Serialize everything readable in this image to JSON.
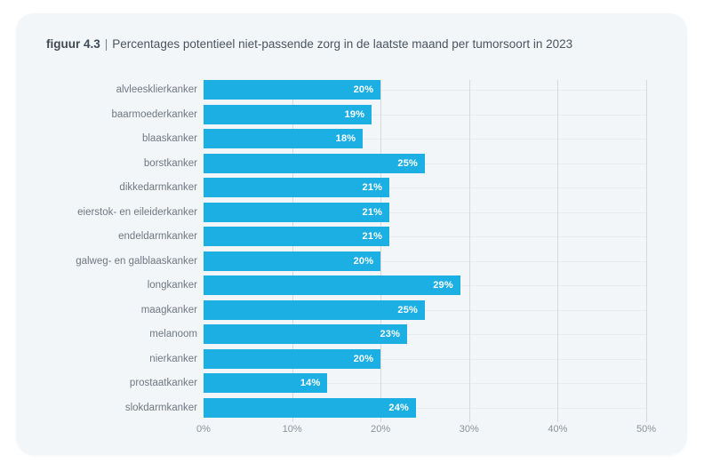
{
  "header": {
    "figure_label": "figuur 4.3",
    "separator": "|",
    "title": "Percentages potentieel niet-passende zorg in de laatste maand per tumorsoort in 2023"
  },
  "colors": {
    "page_background": "#ffffff",
    "card_background": "#f3f6f9",
    "bar": "#1cafe4",
    "bar_value_label": "#ffffff",
    "category_label": "#6f7880",
    "axis_label": "#8a9299",
    "vertical_gridline": "#d6d9dc",
    "row_line": "#e6ebf0"
  },
  "chart_data": {
    "type": "bar",
    "orientation": "horizontal",
    "title": "Percentages potentieel niet-passende zorg in de laatste maand per tumorsoort in 2023",
    "categories": [
      "alvleesklierkanker",
      "baarmoederkanker",
      "blaaskanker",
      "borstkanker",
      "dikkedarmkanker",
      "eierstok- en eileiderkanker",
      "endeldarmkanker",
      "galweg- en galblaaskanker",
      "longkanker",
      "maagkanker",
      "melanoom",
      "nierkanker",
      "prostaatkanker",
      "slokdarmkanker"
    ],
    "values": [
      20,
      19,
      18,
      25,
      21,
      21,
      21,
      20,
      29,
      25,
      23,
      20,
      14,
      24
    ],
    "value_labels": [
      "20%",
      "19%",
      "18%",
      "25%",
      "21%",
      "21%",
      "21%",
      "20%",
      "29%",
      "25%",
      "23%",
      "20%",
      "14%",
      "24%"
    ],
    "xlabel": "",
    "ylabel": "",
    "xlim": [
      0,
      50
    ],
    "x_ticks": [
      "0%",
      "10%",
      "20%",
      "30%",
      "40%",
      "50%"
    ],
    "grid": "vertical",
    "legend": "none"
  }
}
